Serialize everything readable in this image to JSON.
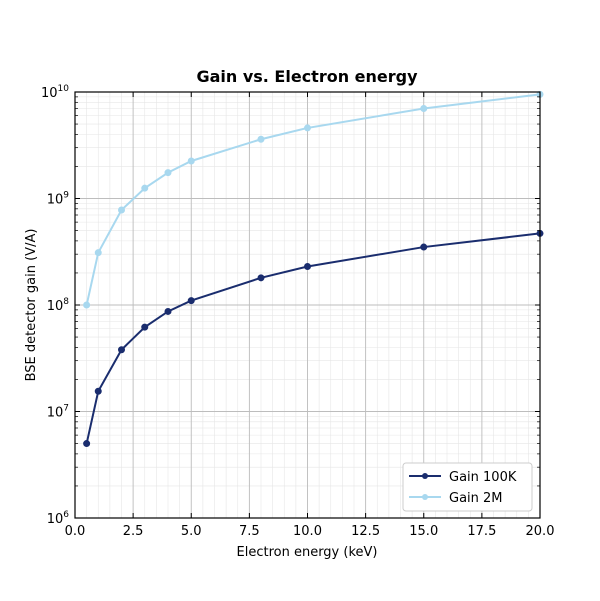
{
  "chart_data": {
    "type": "line",
    "title": "Gain vs. Electron energy",
    "xlabel": "Electron energy  (keV)",
    "ylabel": "BSE detector gain  (V/A)",
    "xlim": [
      0,
      20
    ],
    "ylim": [
      1000000,
      10000000000
    ],
    "yscale": "log",
    "grid": true,
    "legend_position": "bottom-right",
    "x_ticks": [
      "0.0",
      "2.5",
      "5.0",
      "7.5",
      "10.0",
      "12.5",
      "15.0",
      "17.5",
      "20.0"
    ],
    "y_ticks": [
      {
        "base": "10",
        "exp": "6"
      },
      {
        "base": "10",
        "exp": "7"
      },
      {
        "base": "10",
        "exp": "8"
      },
      {
        "base": "10",
        "exp": "9"
      },
      {
        "base": "10",
        "exp": "10"
      }
    ],
    "series": [
      {
        "name": "Gain 100K",
        "color": "#1a2d6e",
        "x": [
          0.5,
          1,
          2,
          3,
          4,
          5,
          8,
          10,
          15,
          20
        ],
        "y": [
          5000000,
          15500000,
          38000000,
          62000000,
          87000000,
          110000000,
          180000000,
          230000000,
          350000000,
          470000000
        ]
      },
      {
        "name": "Gain 2M",
        "color": "#a8d8ef",
        "x": [
          0.5,
          1,
          2,
          3,
          4,
          5,
          8,
          10,
          15,
          20
        ],
        "y": [
          100000000,
          310000000,
          780000000,
          1250000000,
          1750000000,
          2250000000,
          3600000000,
          4600000000,
          7000000000,
          9500000000
        ]
      }
    ]
  }
}
